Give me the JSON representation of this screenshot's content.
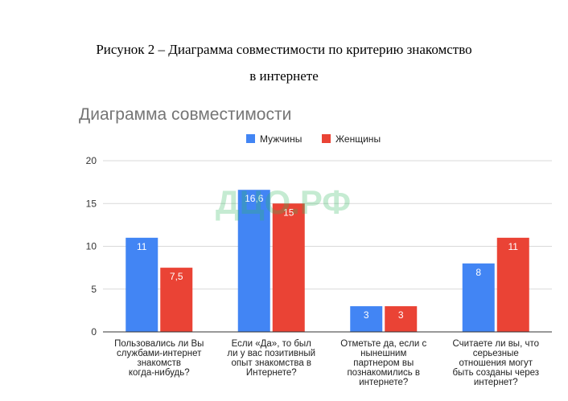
{
  "figure_caption_line1": "Рисунок 2 – Диаграмма совместимости по критерию знакомство",
  "figure_caption_line2": "в интернете",
  "watermark": "ДЦО.РФ",
  "chart_data": {
    "type": "bar",
    "title": "Диаграмма совместимости",
    "xlabel": "",
    "ylabel": "",
    "ylim": [
      0,
      20
    ],
    "yticks": [
      0,
      5,
      10,
      15,
      20
    ],
    "grid": true,
    "legend_position": "top",
    "categories": [
      [
        "Пользовались ли Вы",
        "службами-интернет",
        "знакомств",
        "когда-нибудь?"
      ],
      [
        "Если «Да», то был",
        "ли у вас позитивный",
        "опыт знакомства в",
        "Интернете?"
      ],
      [
        "Отметьте да, если с",
        "нынешним",
        "партнером вы",
        "познакомились в",
        "интернете?"
      ],
      [
        "Считаете ли вы, что",
        "серьезные",
        "отношения могут",
        "быть созданы через",
        "интернет?"
      ]
    ],
    "series": [
      {
        "name": "Мужчины",
        "color": "#4285f4",
        "values": [
          11,
          16.6,
          3,
          8
        ],
        "labels": [
          "11",
          "16,6",
          "3",
          "8"
        ]
      },
      {
        "name": "Женщины",
        "color": "#ea4335",
        "values": [
          7.5,
          15,
          3,
          11
        ],
        "labels": [
          "7,5",
          "15",
          "3",
          "11"
        ]
      }
    ]
  }
}
